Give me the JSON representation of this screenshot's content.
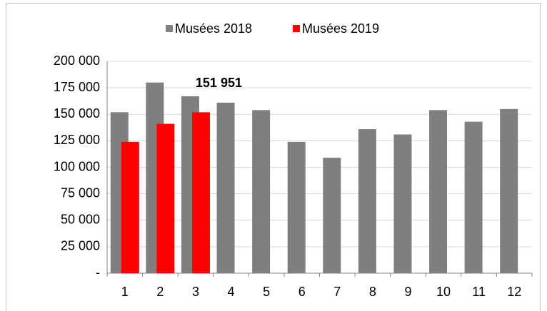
{
  "chart_data": {
    "type": "bar",
    "categories": [
      "1",
      "2",
      "3",
      "4",
      "5",
      "6",
      "7",
      "8",
      "9",
      "10",
      "11",
      "12"
    ],
    "series": [
      {
        "name": "Musées 2018",
        "color": "#7f7f7f",
        "values": [
          152000,
          180000,
          167000,
          161000,
          154000,
          124000,
          109000,
          136000,
          131000,
          154000,
          143000,
          155000
        ]
      },
      {
        "name": "Musées 2019",
        "color": "#ff0000",
        "values": [
          124000,
          141000,
          151951,
          null,
          null,
          null,
          null,
          null,
          null,
          null,
          null,
          null
        ],
        "value_labels": [
          null,
          null,
          "151 951",
          null,
          null,
          null,
          null,
          null,
          null,
          null,
          null,
          null
        ]
      }
    ],
    "ylim": [
      0,
      200000
    ],
    "yticks": [
      {
        "value": 0,
        "label": "-"
      },
      {
        "value": 25000,
        "label": "25 000"
      },
      {
        "value": 50000,
        "label": "50 000"
      },
      {
        "value": 75000,
        "label": "75 000"
      },
      {
        "value": 100000,
        "label": "100 000"
      },
      {
        "value": 125000,
        "label": "125 000"
      },
      {
        "value": 150000,
        "label": "150 000"
      },
      {
        "value": 175000,
        "label": "175 000"
      },
      {
        "value": 200000,
        "label": "200 000"
      }
    ],
    "grid": true,
    "legend": "top"
  }
}
